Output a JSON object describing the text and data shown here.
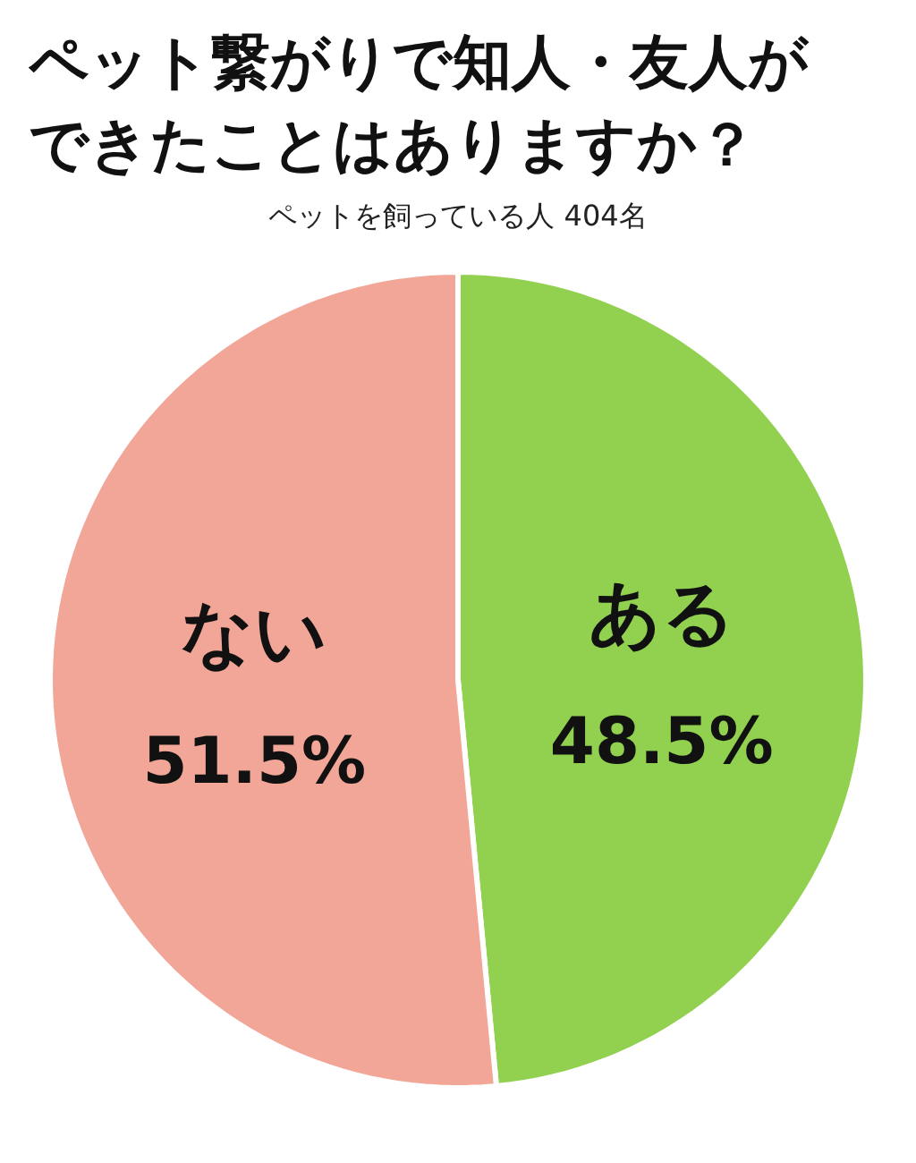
{
  "chart_data": {
    "type": "pie",
    "title": "ペット繋がりで知人・友人ができたことはありますか？",
    "subtitle": "ペットを飼っている人 404名",
    "categories": [
      "ある",
      "ない"
    ],
    "values": [
      48.5,
      51.5
    ],
    "colors": [
      "#92d050",
      "#f2a698"
    ],
    "value_labels": [
      "48.5%",
      "51.5%"
    ],
    "legend": false
  }
}
